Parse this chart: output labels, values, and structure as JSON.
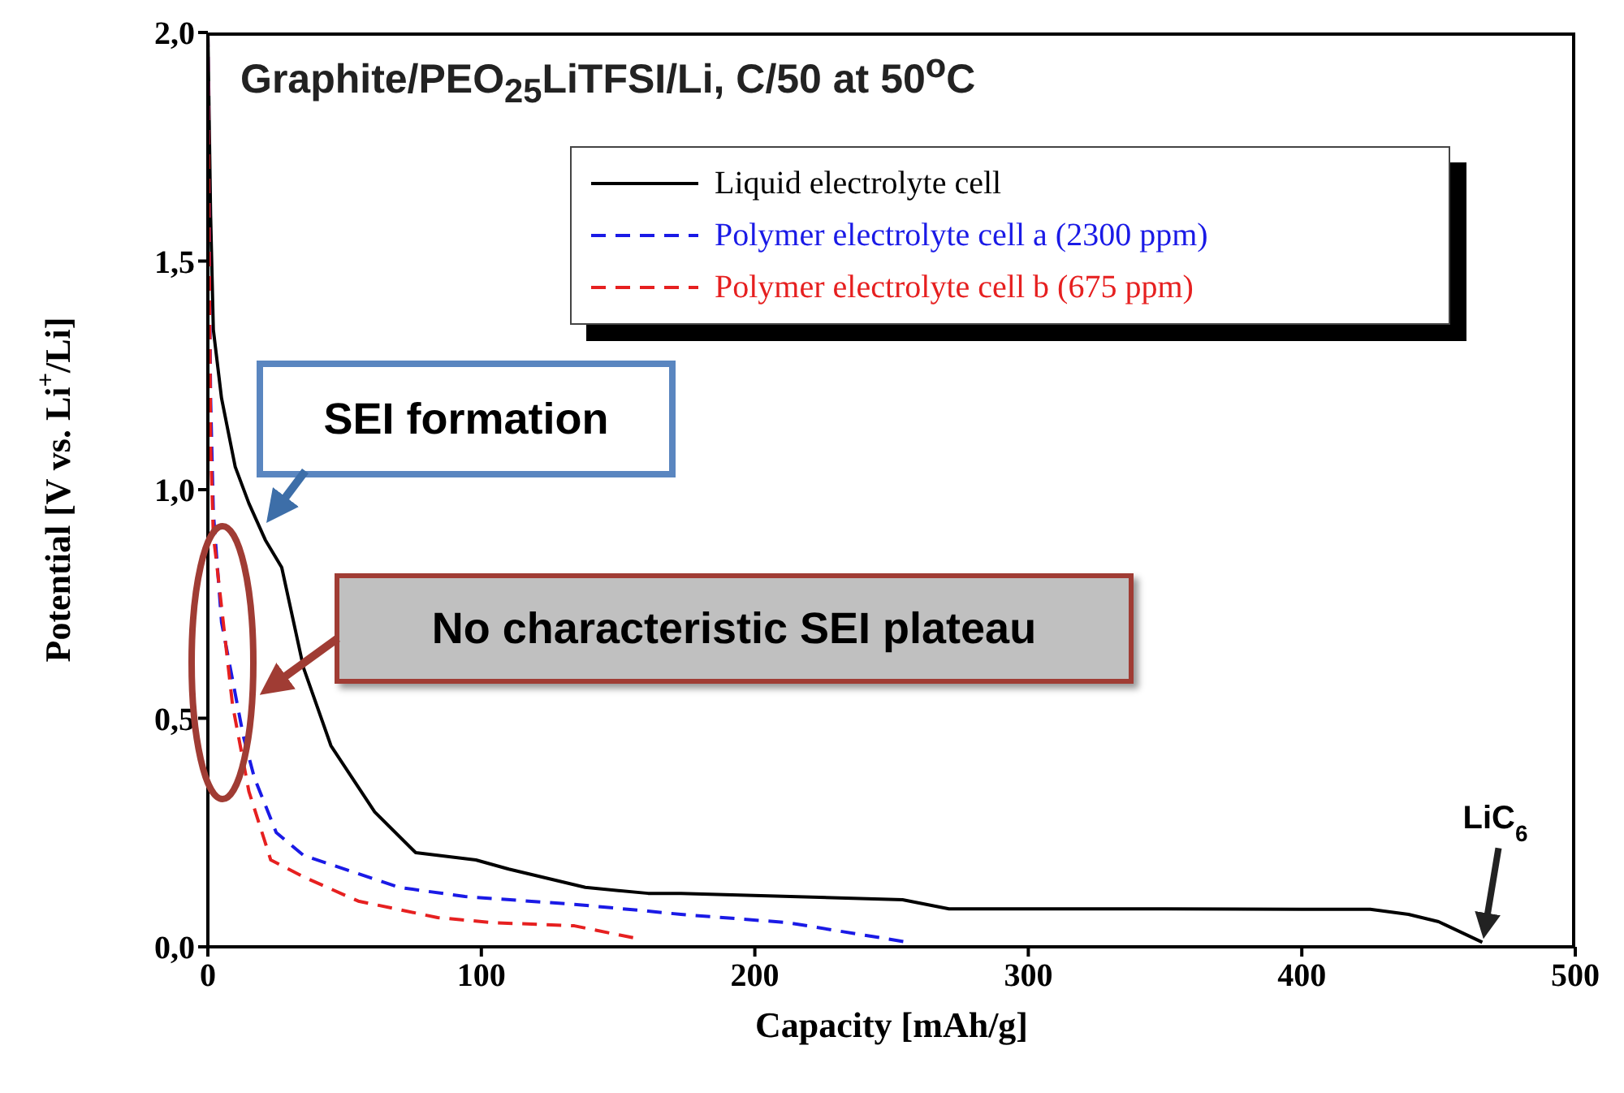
{
  "chart_data": {
    "type": "line",
    "title": "Graphite/PEO$_{25}$LiTFSI/Li, C/50 at 50$^{o}$C",
    "xlabel": "Capacity [mAh/g]",
    "ylabel": "Potential [V vs. Li$^{+}$/Li]",
    "xlim": [
      0,
      500
    ],
    "xticks": [
      0,
      100,
      200,
      300,
      400,
      500
    ],
    "ylim": [
      0,
      2
    ],
    "yticks": [
      {
        "value": 0,
        "label": "0,0"
      },
      {
        "value": 0.5,
        "label": "0,5"
      },
      {
        "value": 1,
        "label": "1,0"
      },
      {
        "value": 1.5,
        "label": "1,5"
      },
      {
        "value": 2,
        "label": "2,0"
      }
    ],
    "grid": false,
    "legend": "top right",
    "series": [
      {
        "name": "Liquid electrolyte cell",
        "color": "#000000",
        "line_style": "solid",
        "x": [
          0,
          1,
          2,
          5,
          10,
          15,
          21,
          27,
          35,
          45,
          61,
          76,
          98,
          110,
          138,
          161,
          173,
          254,
          271,
          300,
          350,
          400,
          425,
          439,
          450,
          466
        ],
        "values": [
          2.0,
          1.6,
          1.35,
          1.2,
          1.05,
          0.97,
          0.89,
          0.83,
          0.61,
          0.44,
          0.295,
          0.206,
          0.19,
          0.17,
          0.13,
          0.117,
          0.117,
          0.103,
          0.083,
          0.083,
          0.083,
          0.082,
          0.082,
          0.071,
          0.055,
          0.01
        ]
      },
      {
        "name": "Polymer electrolyte cell a (2300 ppm)",
        "color": "#1a1ae6",
        "line_style": "dashed",
        "x": [
          0,
          0.5,
          1,
          2,
          5,
          13,
          17,
          25,
          35,
          70,
          94,
          134,
          161,
          173,
          212,
          256
        ],
        "values": [
          2.0,
          1.5,
          1.2,
          0.95,
          0.71,
          0.46,
          0.37,
          0.25,
          0.2,
          0.13,
          0.11,
          0.093,
          0.078,
          0.071,
          0.053,
          0.01
        ]
      },
      {
        "name": "Polymer electrolyte cell b (675 ppm)",
        "color": "#e62020",
        "line_style": "dashed",
        "x": [
          0,
          0.5,
          1,
          2,
          3,
          9,
          15,
          23,
          35,
          55,
          84,
          104,
          134,
          157
        ],
        "values": [
          2.0,
          1.5,
          1.1,
          0.9,
          0.85,
          0.53,
          0.34,
          0.19,
          0.153,
          0.1,
          0.064,
          0.053,
          0.046,
          0.018
        ]
      }
    ],
    "annotations": [
      "SEI formation",
      "No characteristic SEI plateau",
      {
        "text": "LiC$_{6}$",
        "x": 466,
        "y": 0.01
      }
    ]
  }
}
